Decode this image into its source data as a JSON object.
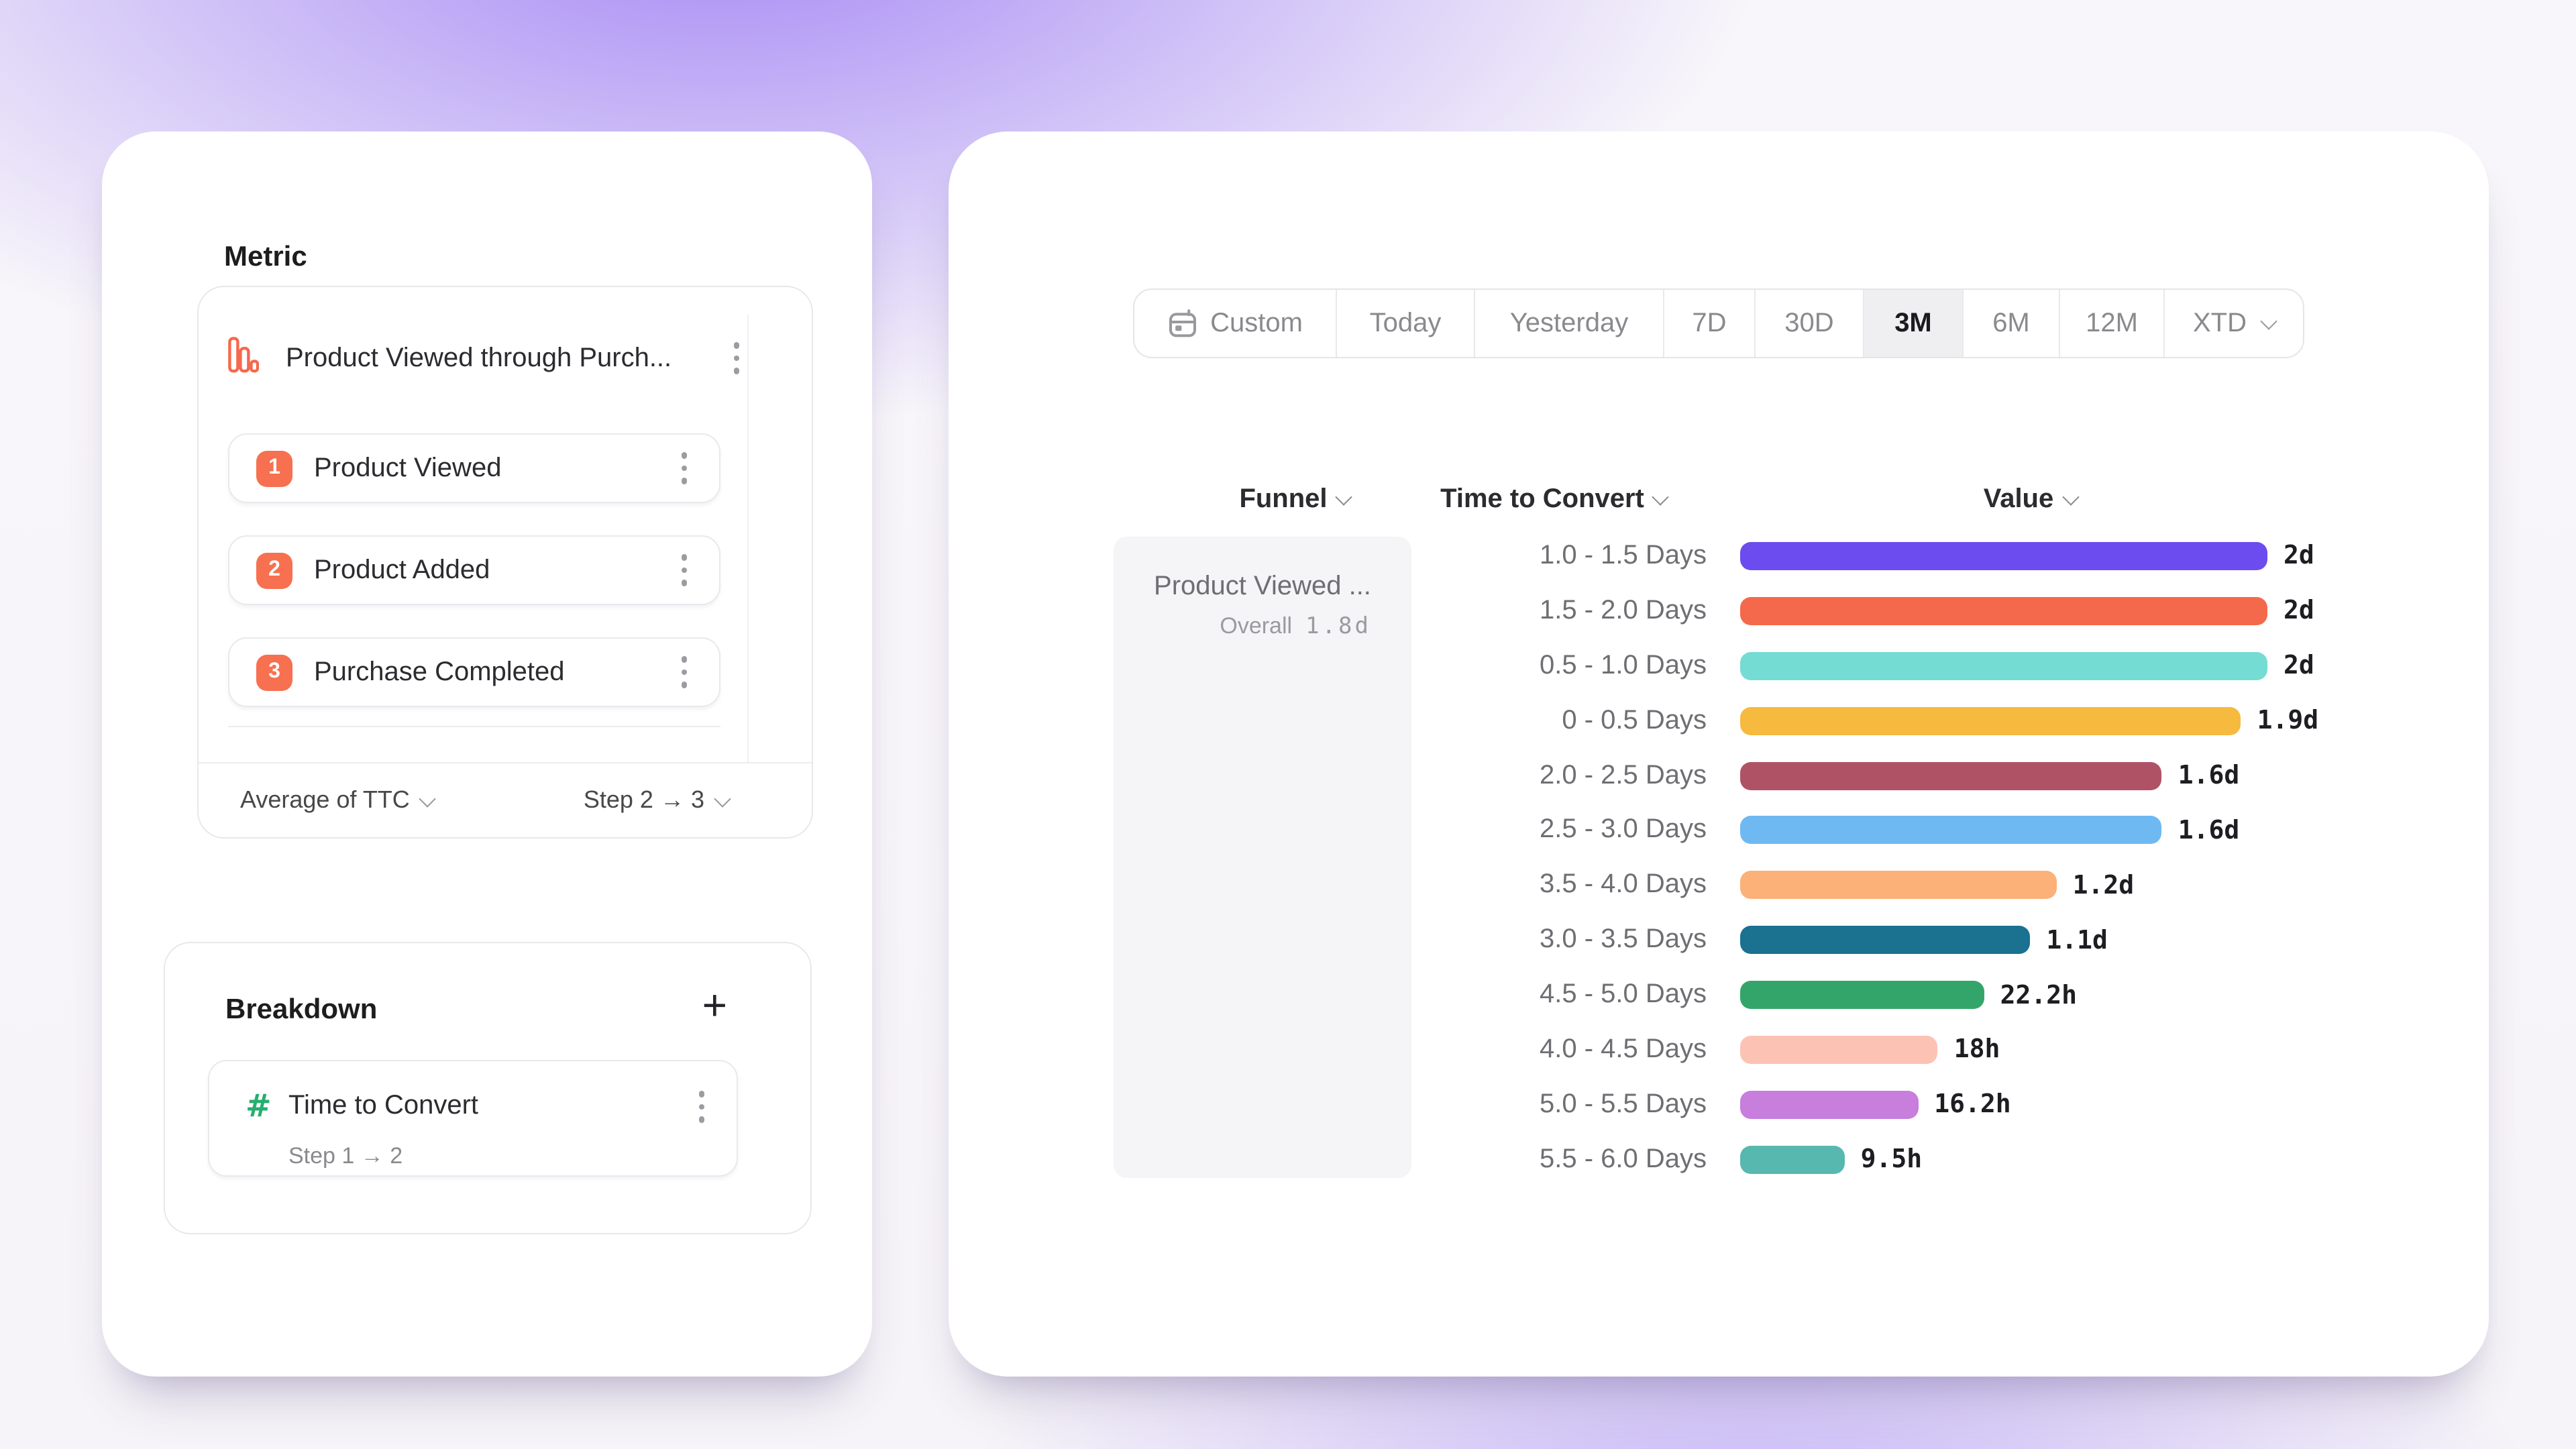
{
  "left_panel": {
    "metric": {
      "title": "Metric",
      "funnel_name": "Product Viewed through Purch...",
      "steps": [
        {
          "number": "1",
          "label": "Product Viewed"
        },
        {
          "number": "2",
          "label": "Product Added"
        },
        {
          "number": "3",
          "label": "Purchase Completed"
        }
      ],
      "aggregation_label": "Average of TTC",
      "step_selector_label": "Step 2 → 3"
    },
    "breakdown": {
      "title": "Breakdown",
      "add_button": "+",
      "item_label": "Time to Convert",
      "item_sublabel": "Step 1 → 2"
    }
  },
  "right_panel": {
    "date_range": {
      "options": [
        "Custom",
        "Today",
        "Yesterday",
        "7D",
        "30D",
        "3M",
        "6M",
        "12M",
        "XTD"
      ],
      "selected": "3M"
    },
    "table_headers": {
      "funnel": "Funnel",
      "time_to_convert": "Time to Convert",
      "value": "Value"
    },
    "funnel_cell": {
      "name": "Product Viewed ...",
      "overall_label": "Overall",
      "overall_value": "1.8d"
    }
  },
  "icons": {
    "metric_icon": "bar-chart-outline",
    "breakdown_item_icon": "hash",
    "date_custom_icon": "calendar",
    "menu_icon": "kebab-vertical",
    "expand_icon": "chevron-down"
  },
  "colors": {
    "accent_orange": "#f5694d",
    "accent_green": "#27ae70",
    "selected_segment_bg": "#efeef0"
  },
  "chart_data": {
    "type": "bar",
    "orientation": "horizontal",
    "categories": [
      "1.0 - 1.5 Days",
      "1.5 - 2.0 Days",
      "0.5 - 1.0 Days",
      "0 - 0.5 Days",
      "2.0 - 2.5 Days",
      "2.5 - 3.0 Days",
      "3.5 - 4.0 Days",
      "3.0 - 3.5 Days",
      "4.5 - 5.0 Days",
      "4.0 - 4.5 Days",
      "5.0 - 5.5 Days",
      "5.5 - 6.0 Days"
    ],
    "values_display": [
      "2d",
      "2d",
      "2d",
      "1.9d",
      "1.6d",
      "1.6d",
      "1.2d",
      "1.1d",
      "22.2h",
      "18h",
      "16.2h",
      "9.5h"
    ],
    "values_in_days": [
      2,
      2,
      2,
      1.9,
      1.6,
      1.6,
      1.2,
      1.1,
      0.925,
      0.75,
      0.675,
      0.396
    ],
    "x_max_days": 2,
    "colors": [
      "#6c4cee",
      "#f4694b",
      "#74dcd2",
      "#f6ba3f",
      "#b05266",
      "#6fb9f2",
      "#fbb177",
      "#1a7190",
      "#34a56a",
      "#fcc2b4",
      "#c77edd",
      "#57b8af"
    ],
    "grid": false,
    "legend": false
  }
}
